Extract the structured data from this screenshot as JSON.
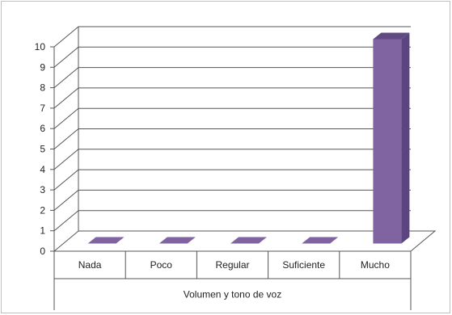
{
  "chart_data": {
    "type": "bar",
    "categories": [
      "Nada",
      "Poco",
      "Regular",
      "Suficiente",
      "Mucho"
    ],
    "values": [
      0,
      0,
      0,
      0,
      10
    ],
    "xlabel": "Volumen y tono de voz",
    "ylabel": "",
    "ylim": [
      0,
      10
    ],
    "yticks": [
      "0",
      "1",
      "2",
      "3",
      "4",
      "5",
      "6",
      "7",
      "8",
      "9",
      "10"
    ],
    "grid": true,
    "legend": "none",
    "style": "3d-column"
  },
  "colors": {
    "bar_front": "#8064a2",
    "bar_side": "#5b4580",
    "bar_top": "#5f4a83",
    "grid": "#555555",
    "background": "#ffffff"
  }
}
